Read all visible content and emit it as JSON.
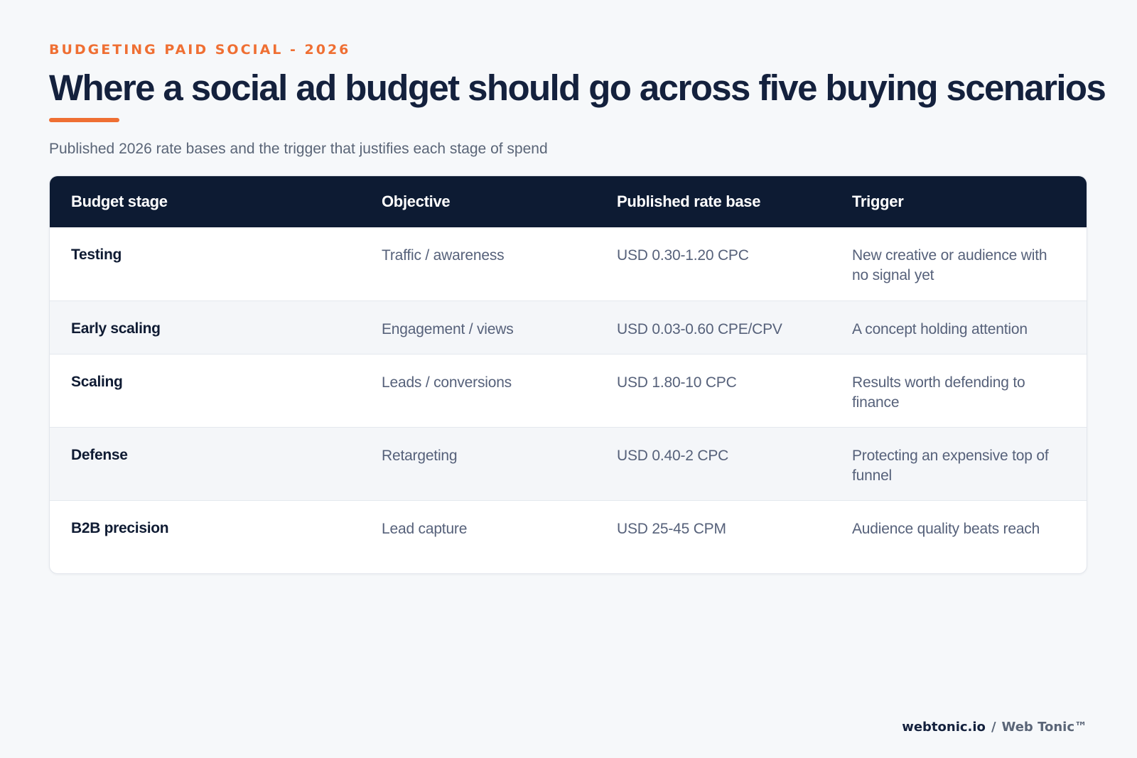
{
  "eyebrow": "BUDGETING PAID SOCIAL - 2026",
  "title": "Where a social ad budget should go across five buying scenarios",
  "subtitle": "Published 2026 rate bases and the trigger that justifies each stage of spend",
  "table": {
    "headers": [
      "Budget stage",
      "Objective",
      "Published rate base",
      "Trigger"
    ],
    "rows": [
      {
        "stage": "Testing",
        "objective": "Traffic / awareness",
        "rate": "USD 0.30-1.20 CPC",
        "trigger": "New creative or audience with no signal yet"
      },
      {
        "stage": "Early scaling",
        "objective": "Engagement / views",
        "rate": "USD 0.03-0.60 CPE/CPV",
        "trigger": "A concept holding attention"
      },
      {
        "stage": "Scaling",
        "objective": "Leads / conversions",
        "rate": "USD 1.80-10 CPC",
        "trigger": "Results worth defending to finance"
      },
      {
        "stage": "Defense",
        "objective": "Retargeting",
        "rate": "USD 0.40-2 CPC",
        "trigger": "Protecting an expensive top of funnel"
      },
      {
        "stage": "B2B precision",
        "objective": "Lead capture",
        "rate": "USD 25-45 CPM",
        "trigger": "Audience quality beats reach"
      }
    ]
  },
  "footer": {
    "site": "webtonic.io",
    "separator": "/",
    "brand": "Web Tonic™"
  },
  "colors": {
    "accent": "#ef6f33",
    "header_bg": "#0d1b33",
    "page_bg": "#f6f8fa"
  }
}
